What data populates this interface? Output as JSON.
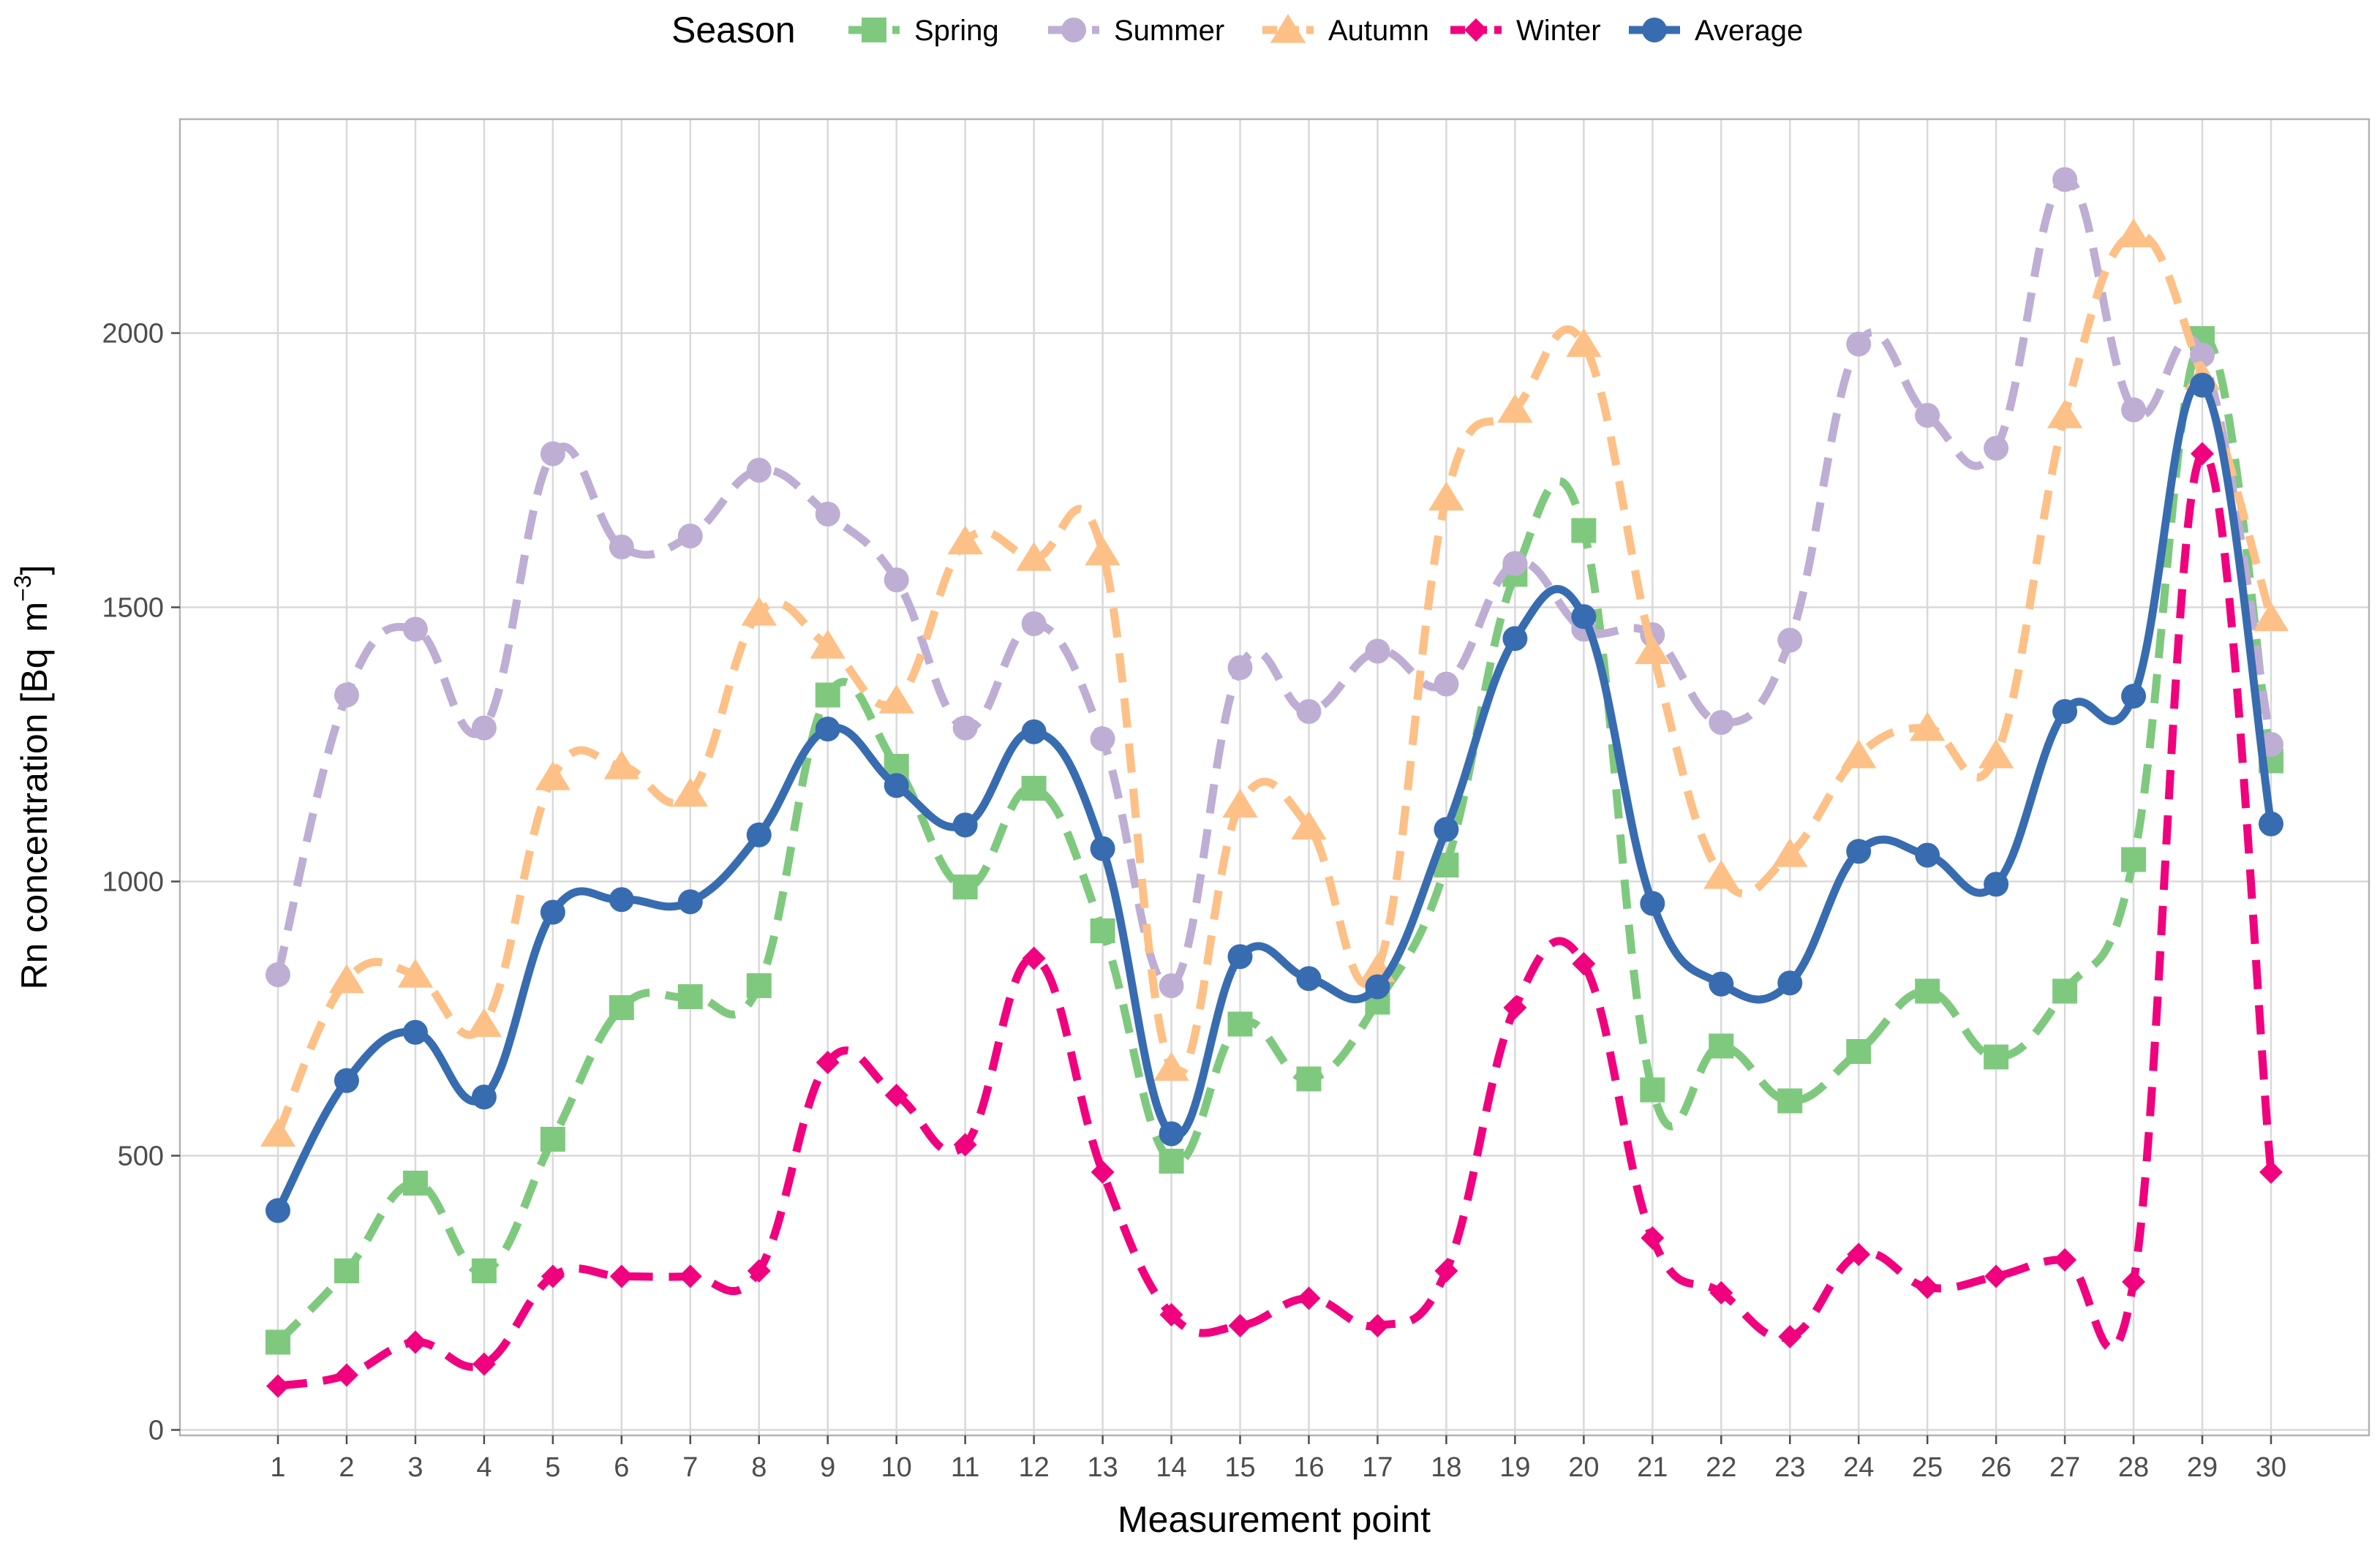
{
  "chart_data": {
    "type": "line",
    "title": "",
    "xlabel": "Measurement point",
    "ylabel": "Rn concentration [Bq",
    "ylabel_unit": "m",
    "ylabel_exponent": "−3",
    "ylabel_close": "]",
    "ylim": [
      -10,
      2390
    ],
    "yticks": [
      0,
      500,
      1000,
      1500,
      2000
    ],
    "ytick_labels": [
      "0",
      "500",
      "1000",
      "1500",
      "2000"
    ],
    "grid": true,
    "legend": {
      "title": "Season",
      "placement": "top"
    },
    "x": [
      1,
      2,
      3,
      4,
      5,
      6,
      7,
      8,
      9,
      10,
      11,
      12,
      13,
      14,
      15,
      16,
      17,
      18,
      19,
      20,
      21,
      22,
      23,
      24,
      25,
      26,
      27,
      28,
      29,
      30
    ],
    "xtick_labels": [
      "1",
      "2",
      "3",
      "4",
      "5",
      "6",
      "7",
      "8",
      "9",
      "10",
      "11",
      "12",
      "13",
      "14",
      "15",
      "16",
      "17",
      "18",
      "19",
      "20",
      "21",
      "22",
      "23",
      "24",
      "25",
      "26",
      "27",
      "28",
      "29",
      "30"
    ],
    "series": [
      {
        "name": "Spring",
        "color": "#7fc97f",
        "marker": "square",
        "dashed": true,
        "values": [
          160,
          290,
          450,
          290,
          530,
          770,
          790,
          810,
          1340,
          1210,
          990,
          1170,
          910,
          490,
          740,
          640,
          780,
          1030,
          1560,
          1640,
          620,
          700,
          600,
          690,
          800,
          680,
          800,
          1040,
          1990,
          1220
        ]
      },
      {
        "name": "Summer",
        "color": "#beaed4",
        "marker": "circle",
        "dashed": true,
        "values": [
          830,
          1340,
          1460,
          1280,
          1780,
          1610,
          1630,
          1750,
          1670,
          1550,
          1280,
          1470,
          1260,
          810,
          1390,
          1310,
          1420,
          1360,
          1580,
          1460,
          1450,
          1290,
          1440,
          1980,
          1850,
          1790,
          2280,
          1860,
          1960,
          1250
        ]
      },
      {
        "name": "Autumn",
        "color": "#fdc086",
        "marker": "triangle",
        "dashed": true,
        "values": [
          540,
          820,
          830,
          740,
          1190,
          1210,
          1160,
          1490,
          1430,
          1330,
          1620,
          1590,
          1600,
          660,
          1140,
          1100,
          840,
          1700,
          1860,
          1980,
          1420,
          1010,
          1050,
          1230,
          1280,
          1230,
          1850,
          2180,
          1920,
          1480
        ]
      },
      {
        "name": "Winter",
        "color": "#f0027f",
        "marker": "diamond",
        "dashed": true,
        "values": [
          80,
          100,
          160,
          120,
          280,
          280,
          280,
          290,
          670,
          610,
          520,
          860,
          470,
          210,
          190,
          240,
          190,
          290,
          770,
          850,
          350,
          250,
          170,
          320,
          260,
          280,
          310,
          270,
          1780,
          470
        ]
      },
      {
        "name": "Average",
        "color": "#386cb0",
        "marker": "circle",
        "dashed": false,
        "values": [
          400,
          637,
          725,
          607,
          944,
          967,
          963,
          1085,
          1278,
          1175,
          1103,
          1273,
          1060,
          540,
          863,
          823,
          808,
          1095,
          1443,
          1483,
          960,
          813,
          815,
          1055,
          1048,
          995,
          1310,
          1338,
          1905,
          1105
        ]
      }
    ]
  }
}
